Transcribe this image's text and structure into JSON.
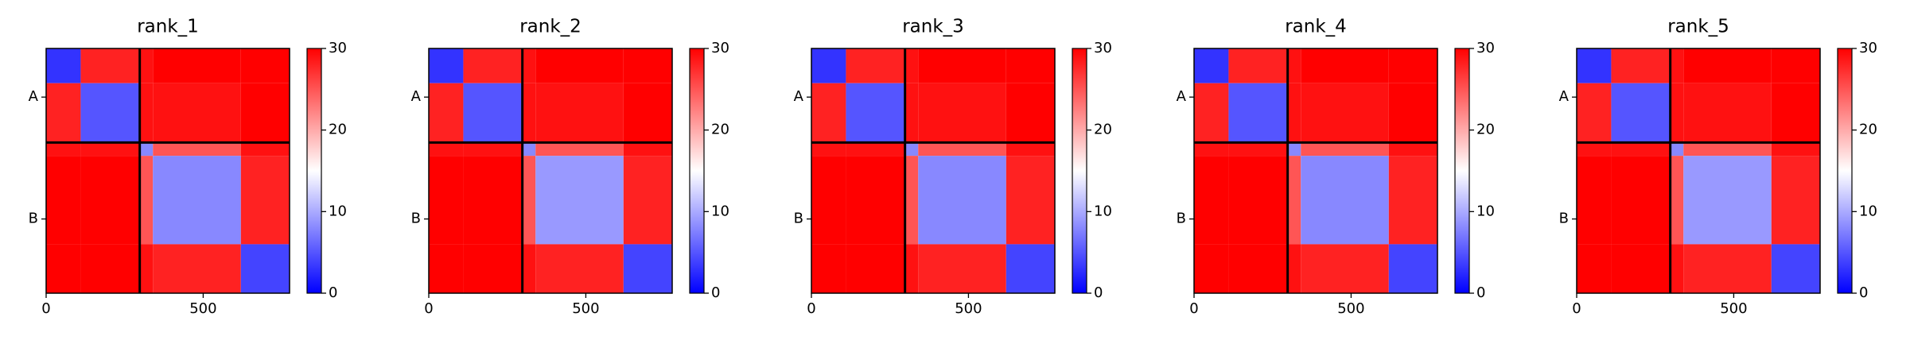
{
  "chart_data": [
    {
      "type": "heatmap",
      "title": "rank_1",
      "edges": [
        0,
        110,
        298,
        340,
        620,
        775
      ],
      "z": [
        [
          3,
          28,
          29,
          30,
          30
        ],
        [
          28,
          5,
          29,
          29,
          30
        ],
        [
          29,
          29,
          8,
          25,
          29
        ],
        [
          30,
          30,
          25,
          8,
          28
        ],
        [
          30,
          30,
          29,
          28,
          4
        ]
      ],
      "xlim": [
        0,
        775
      ],
      "ylim": [
        775,
        0
      ],
      "xticks": [
        0,
        500
      ],
      "yticks": [
        {
          "value": 154,
          "label": "A"
        },
        {
          "value": 540,
          "label": "B"
        }
      ],
      "chain_breaks": [
        298
      ],
      "clim": [
        0,
        30
      ],
      "cticks": [
        0,
        10,
        20,
        30
      ],
      "colormap": "bwr"
    },
    {
      "type": "heatmap",
      "title": "rank_2",
      "edges": [
        0,
        110,
        298,
        340,
        620,
        775
      ],
      "z": [
        [
          3,
          28,
          29,
          30,
          30
        ],
        [
          28,
          5,
          29,
          29,
          30
        ],
        [
          29,
          29,
          8,
          25,
          29
        ],
        [
          30,
          30,
          25,
          9,
          28
        ],
        [
          30,
          30,
          29,
          28,
          4
        ]
      ],
      "xlim": [
        0,
        775
      ],
      "ylim": [
        775,
        0
      ],
      "xticks": [
        0,
        500
      ],
      "yticks": [
        {
          "value": 154,
          "label": "A"
        },
        {
          "value": 540,
          "label": "B"
        }
      ],
      "chain_breaks": [
        298
      ],
      "clim": [
        0,
        30
      ],
      "cticks": [
        0,
        10,
        20,
        30
      ],
      "colormap": "bwr"
    },
    {
      "type": "heatmap",
      "title": "rank_3",
      "edges": [
        0,
        110,
        298,
        340,
        620,
        775
      ],
      "z": [
        [
          3,
          28,
          29,
          30,
          30
        ],
        [
          28,
          5,
          29,
          29,
          30
        ],
        [
          29,
          29,
          8,
          25,
          29
        ],
        [
          30,
          30,
          25,
          8,
          28
        ],
        [
          30,
          30,
          29,
          28,
          4
        ]
      ],
      "xlim": [
        0,
        775
      ],
      "ylim": [
        775,
        0
      ],
      "xticks": [
        0,
        500
      ],
      "yticks": [
        {
          "value": 154,
          "label": "A"
        },
        {
          "value": 540,
          "label": "B"
        }
      ],
      "chain_breaks": [
        298
      ],
      "clim": [
        0,
        30
      ],
      "cticks": [
        0,
        10,
        20,
        30
      ],
      "colormap": "bwr"
    },
    {
      "type": "heatmap",
      "title": "rank_4",
      "edges": [
        0,
        110,
        298,
        340,
        620,
        775
      ],
      "z": [
        [
          3,
          28,
          29,
          30,
          30
        ],
        [
          28,
          5,
          29,
          29,
          30
        ],
        [
          29,
          29,
          8,
          25,
          29
        ],
        [
          30,
          30,
          25,
          8,
          28
        ],
        [
          30,
          30,
          29,
          28,
          4
        ]
      ],
      "xlim": [
        0,
        775
      ],
      "ylim": [
        775,
        0
      ],
      "xticks": [
        0,
        500
      ],
      "yticks": [
        {
          "value": 154,
          "label": "A"
        },
        {
          "value": 540,
          "label": "B"
        }
      ],
      "chain_breaks": [
        298
      ],
      "clim": [
        0,
        30
      ],
      "cticks": [
        0,
        10,
        20,
        30
      ],
      "colormap": "bwr"
    },
    {
      "type": "heatmap",
      "title": "rank_5",
      "edges": [
        0,
        110,
        298,
        340,
        620,
        775
      ],
      "z": [
        [
          3,
          28,
          29,
          30,
          30
        ],
        [
          28,
          5,
          29,
          29,
          30
        ],
        [
          29,
          29,
          8,
          25,
          29
        ],
        [
          30,
          30,
          25,
          9,
          28
        ],
        [
          30,
          30,
          29,
          28,
          4
        ]
      ],
      "xlim": [
        0,
        775
      ],
      "ylim": [
        775,
        0
      ],
      "xticks": [
        0,
        500
      ],
      "yticks": [
        {
          "value": 154,
          "label": "A"
        },
        {
          "value": 540,
          "label": "B"
        }
      ],
      "chain_breaks": [
        298
      ],
      "clim": [
        0,
        30
      ],
      "cticks": [
        0,
        10,
        20,
        30
      ],
      "colormap": "bwr"
    }
  ]
}
